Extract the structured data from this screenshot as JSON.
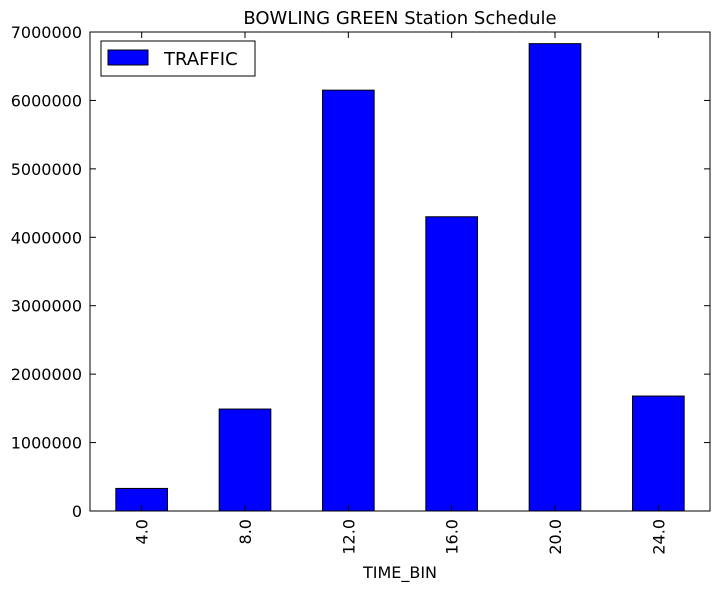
{
  "chart_data": {
    "type": "bar",
    "title": "BOWLING GREEN Station Schedule",
    "xlabel": "TIME_BIN",
    "ylabel": "",
    "categories": [
      "4.0",
      "8.0",
      "12.0",
      "16.0",
      "20.0",
      "24.0"
    ],
    "series": [
      {
        "name": "TRAFFIC",
        "color": "#0000ff",
        "values": [
          330000,
          1490000,
          6150000,
          4300000,
          6830000,
          1680000
        ]
      }
    ],
    "ylim": [
      0,
      7000000
    ],
    "yticks": [
      0,
      1000000,
      2000000,
      3000000,
      4000000,
      5000000,
      6000000,
      7000000
    ],
    "ytick_labels": [
      "0",
      "1000000",
      "2000000",
      "3000000",
      "4000000",
      "5000000",
      "6000000",
      "7000000"
    ],
    "grid": false,
    "legend_position": "top-left"
  }
}
